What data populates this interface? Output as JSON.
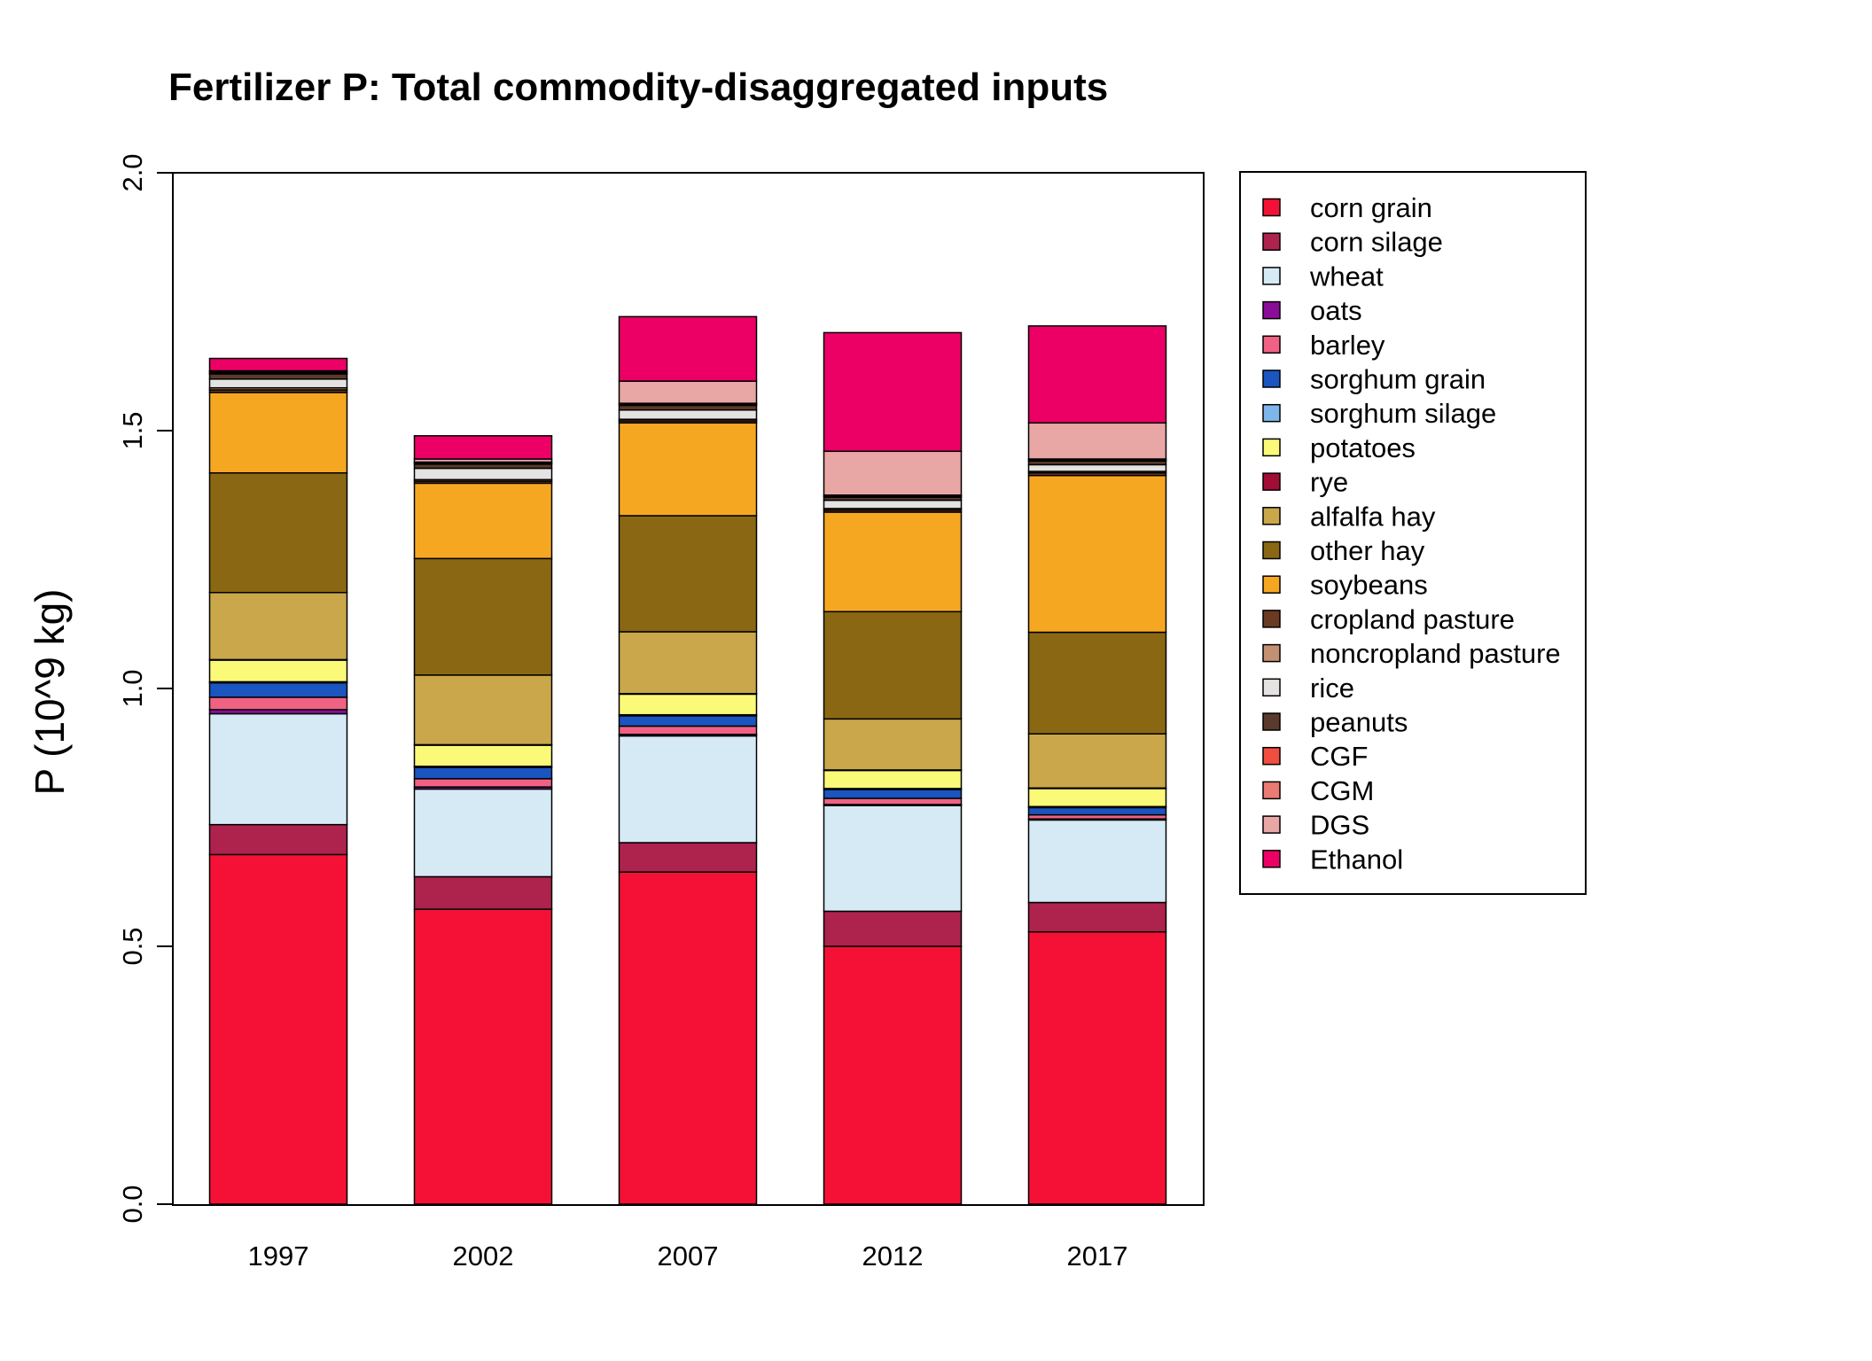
{
  "chart_data": {
    "type": "bar",
    "stacked": true,
    "title": "Fertilizer P: Total commodity-disaggregated inputs",
    "xlabel": "",
    "ylabel": "P (10^9 kg)",
    "ylim": [
      0,
      2.0
    ],
    "yticks": [
      "0.0",
      "0.5",
      "1.0",
      "1.5",
      "2.0"
    ],
    "categories": [
      "1997",
      "2002",
      "2007",
      "2012",
      "2017"
    ],
    "legend_position": "right",
    "grid": false,
    "series": [
      {
        "name": "corn grain",
        "color": "#F51135",
        "values": [
          0.678,
          0.572,
          0.644,
          0.5,
          0.528
        ]
      },
      {
        "name": "corn silage",
        "color": "#AE234E",
        "values": [
          0.058,
          0.063,
          0.057,
          0.068,
          0.057
        ]
      },
      {
        "name": "wheat",
        "color": "#D6EAF6",
        "values": [
          0.215,
          0.17,
          0.207,
          0.205,
          0.16
        ]
      },
      {
        "name": "oats",
        "color": "#8A0D99",
        "values": [
          0.008,
          0.004,
          0.003,
          0.002,
          0.002
        ]
      },
      {
        "name": "barley",
        "color": "#F06283",
        "values": [
          0.024,
          0.016,
          0.016,
          0.012,
          0.008
        ]
      },
      {
        "name": "sorghum grain",
        "color": "#1A55C0",
        "values": [
          0.028,
          0.022,
          0.02,
          0.017,
          0.014
        ]
      },
      {
        "name": "sorghum silage",
        "color": "#7EB6EB",
        "values": [
          0.002,
          0.002,
          0.002,
          0.002,
          0.002
        ]
      },
      {
        "name": "potatoes",
        "color": "#FAFA78",
        "values": [
          0.042,
          0.041,
          0.04,
          0.035,
          0.035
        ]
      },
      {
        "name": "rye",
        "color": "#A20D35",
        "values": [
          0.001,
          0.001,
          0.001,
          0.001,
          0.001
        ]
      },
      {
        "name": "alfalfa hay",
        "color": "#C9A74A",
        "values": [
          0.13,
          0.135,
          0.12,
          0.099,
          0.105
        ]
      },
      {
        "name": "other hay",
        "color": "#8A6813",
        "values": [
          0.232,
          0.226,
          0.225,
          0.208,
          0.197
        ]
      },
      {
        "name": "soybeans",
        "color": "#F6A722",
        "values": [
          0.156,
          0.146,
          0.18,
          0.193,
          0.304
        ]
      },
      {
        "name": "cropland pasture",
        "color": "#6B3A22",
        "values": [
          0.005,
          0.004,
          0.004,
          0.004,
          0.005
        ]
      },
      {
        "name": "noncropland pasture",
        "color": "#C39072",
        "values": [
          0.004,
          0.003,
          0.003,
          0.003,
          0.003
        ]
      },
      {
        "name": "rice",
        "color": "#E5E2E2",
        "values": [
          0.017,
          0.022,
          0.018,
          0.016,
          0.013
        ]
      },
      {
        "name": "peanuts",
        "color": "#5A3A2A",
        "values": [
          0.01,
          0.008,
          0.009,
          0.006,
          0.007
        ]
      },
      {
        "name": "CGF",
        "color": "#F24E40",
        "values": [
          0.002,
          0.002,
          0.002,
          0.002,
          0.002
        ]
      },
      {
        "name": "CGM",
        "color": "#EA7A72",
        "values": [
          0.002,
          0.002,
          0.002,
          0.002,
          0.002
        ]
      },
      {
        "name": "DGS",
        "color": "#E8A6A4",
        "values": [
          0.002,
          0.006,
          0.043,
          0.085,
          0.07
        ]
      },
      {
        "name": "Ethanol",
        "color": "#EC0066",
        "values": [
          0.024,
          0.045,
          0.125,
          0.23,
          0.188
        ]
      }
    ]
  }
}
